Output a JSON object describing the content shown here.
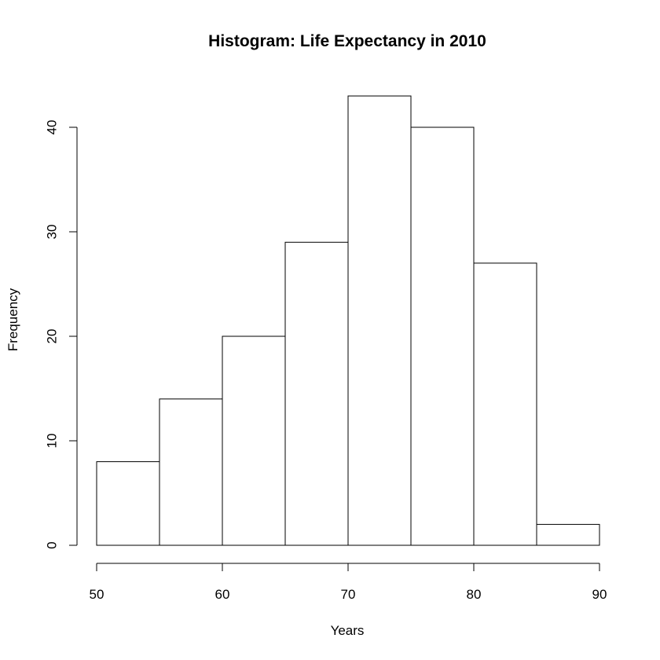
{
  "chart_data": {
    "type": "bar",
    "title": "Histogram: Life Expectancy in 2010",
    "xlabel": "Years",
    "ylabel": "Frequency",
    "bins": [
      [
        50,
        55
      ],
      [
        55,
        60
      ],
      [
        60,
        65
      ],
      [
        65,
        70
      ],
      [
        70,
        75
      ],
      [
        75,
        80
      ],
      [
        80,
        85
      ],
      [
        85,
        90
      ]
    ],
    "values": [
      8,
      14,
      20,
      29,
      43,
      40,
      27,
      2
    ],
    "xlim": [
      50,
      90
    ],
    "ylim": [
      0,
      43
    ],
    "x_ticks": [
      50,
      60,
      70,
      80,
      90
    ],
    "y_ticks": [
      0,
      10,
      20,
      30,
      40
    ],
    "colors": {
      "bar_fill": "#ffffff",
      "bar_stroke": "#000000",
      "axis": "#000000",
      "text": "#000000"
    },
    "grid": false,
    "legend": "none"
  }
}
